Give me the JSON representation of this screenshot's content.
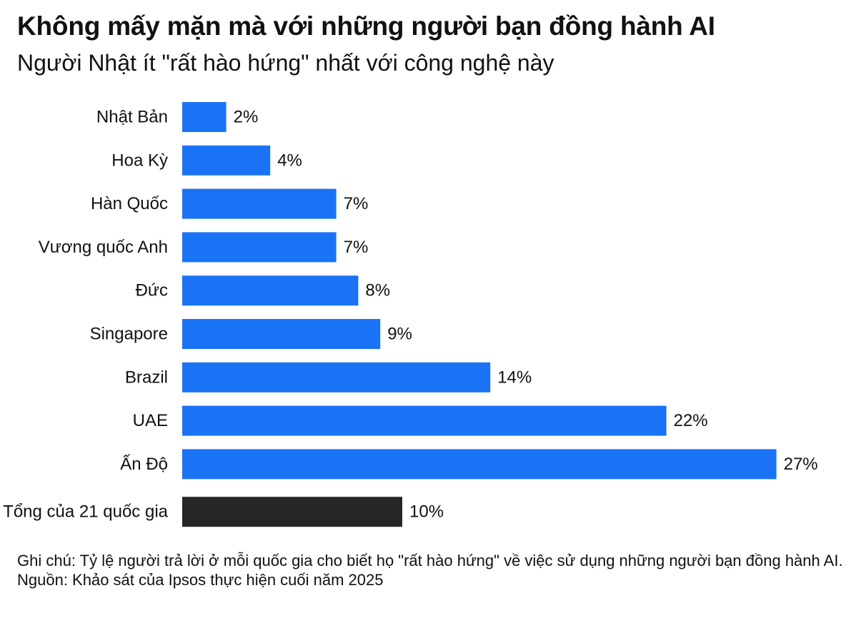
{
  "title": "Không mấy mặn mà với những người bạn đồng hành AI",
  "subtitle": "Người Nhật ít \"rất hào hứng\" nhất với công nghệ này",
  "chart_data": {
    "type": "bar",
    "orientation": "horizontal",
    "categories": [
      "Nhật Bản",
      "Hoa Kỳ",
      "Hàn Quốc",
      "Vương quốc Anh",
      "Đức",
      "Singapore",
      "Brazil",
      "UAE",
      "Ấn Độ",
      "Tổng của 21 quốc gia"
    ],
    "values": [
      2,
      4,
      7,
      7,
      8,
      9,
      14,
      22,
      27,
      10
    ],
    "value_labels": [
      "2%",
      "4%",
      "7%",
      "7%",
      "8%",
      "9%",
      "14%",
      "22%",
      "27%",
      "10%"
    ],
    "bar_colors": [
      "#1a73f5",
      "#1a73f5",
      "#1a73f5",
      "#1a73f5",
      "#1a73f5",
      "#1a73f5",
      "#1a73f5",
      "#1a73f5",
      "#1a73f5",
      "#262626"
    ],
    "xlim": [
      0,
      27
    ],
    "grid": false,
    "axes_visible": false,
    "legend": "none"
  },
  "footer": {
    "note": "Ghi chú: Tỷ lệ người trả lời ở mỗi quốc gia cho biết họ \"rất hào hứng\" về việc sử dụng những người bạn đồng hành AI.",
    "source": "Nguồn: Khảo sát của Ipsos thực hiện cuối năm 2025"
  }
}
